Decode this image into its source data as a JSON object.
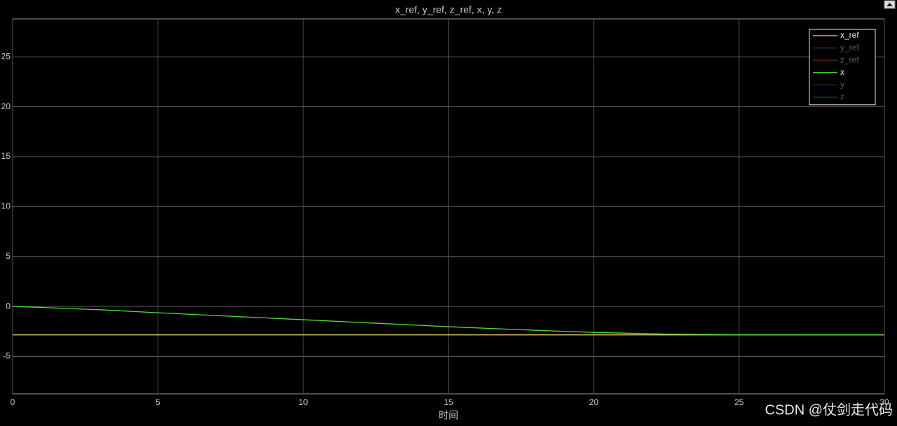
{
  "chart_data": {
    "type": "line",
    "title": "x_ref, y_ref, z_ref, x, y, z",
    "xlabel": "时间",
    "x": [
      0,
      1,
      2,
      3,
      5,
      7.5,
      10,
      12.5,
      15,
      17.5,
      20,
      22.5,
      25,
      27.5,
      30
    ],
    "series": [
      {
        "name": "x_ref",
        "color": "#f2d56b",
        "values": [
          -2.85,
          -2.85,
          -2.85,
          -2.85,
          -2.85,
          -2.85,
          -2.85,
          -2.85,
          -2.85,
          -2.85,
          -2.85,
          -2.85,
          -2.85,
          -2.85,
          -2.85
        ]
      },
      {
        "name": "y_ref",
        "color": "#2f5f9e",
        "hidden": true
      },
      {
        "name": "z_ref",
        "color": "#a8321e",
        "hidden": true
      },
      {
        "name": "x",
        "color": "#4fe03c",
        "values": [
          0,
          -0.1,
          -0.22,
          -0.33,
          -0.63,
          -0.98,
          -1.33,
          -1.68,
          -2.03,
          -2.33,
          -2.6,
          -2.77,
          -2.84,
          -2.85,
          -2.85
        ]
      },
      {
        "name": "y",
        "color": "#6a2f9a",
        "hidden": true
      },
      {
        "name": "z",
        "color": "#2a7079",
        "hidden": true
      }
    ],
    "xlim": [
      0,
      30
    ],
    "xticks": [
      0,
      5,
      10,
      15,
      20,
      25,
      30
    ],
    "ylim": [
      -8.75,
      28.8
    ],
    "yticks": [
      -5,
      0,
      5,
      10,
      15,
      20,
      25
    ],
    "grid": true,
    "legend": "upper right",
    "watermark": "CSDN @仗剑走代码"
  }
}
